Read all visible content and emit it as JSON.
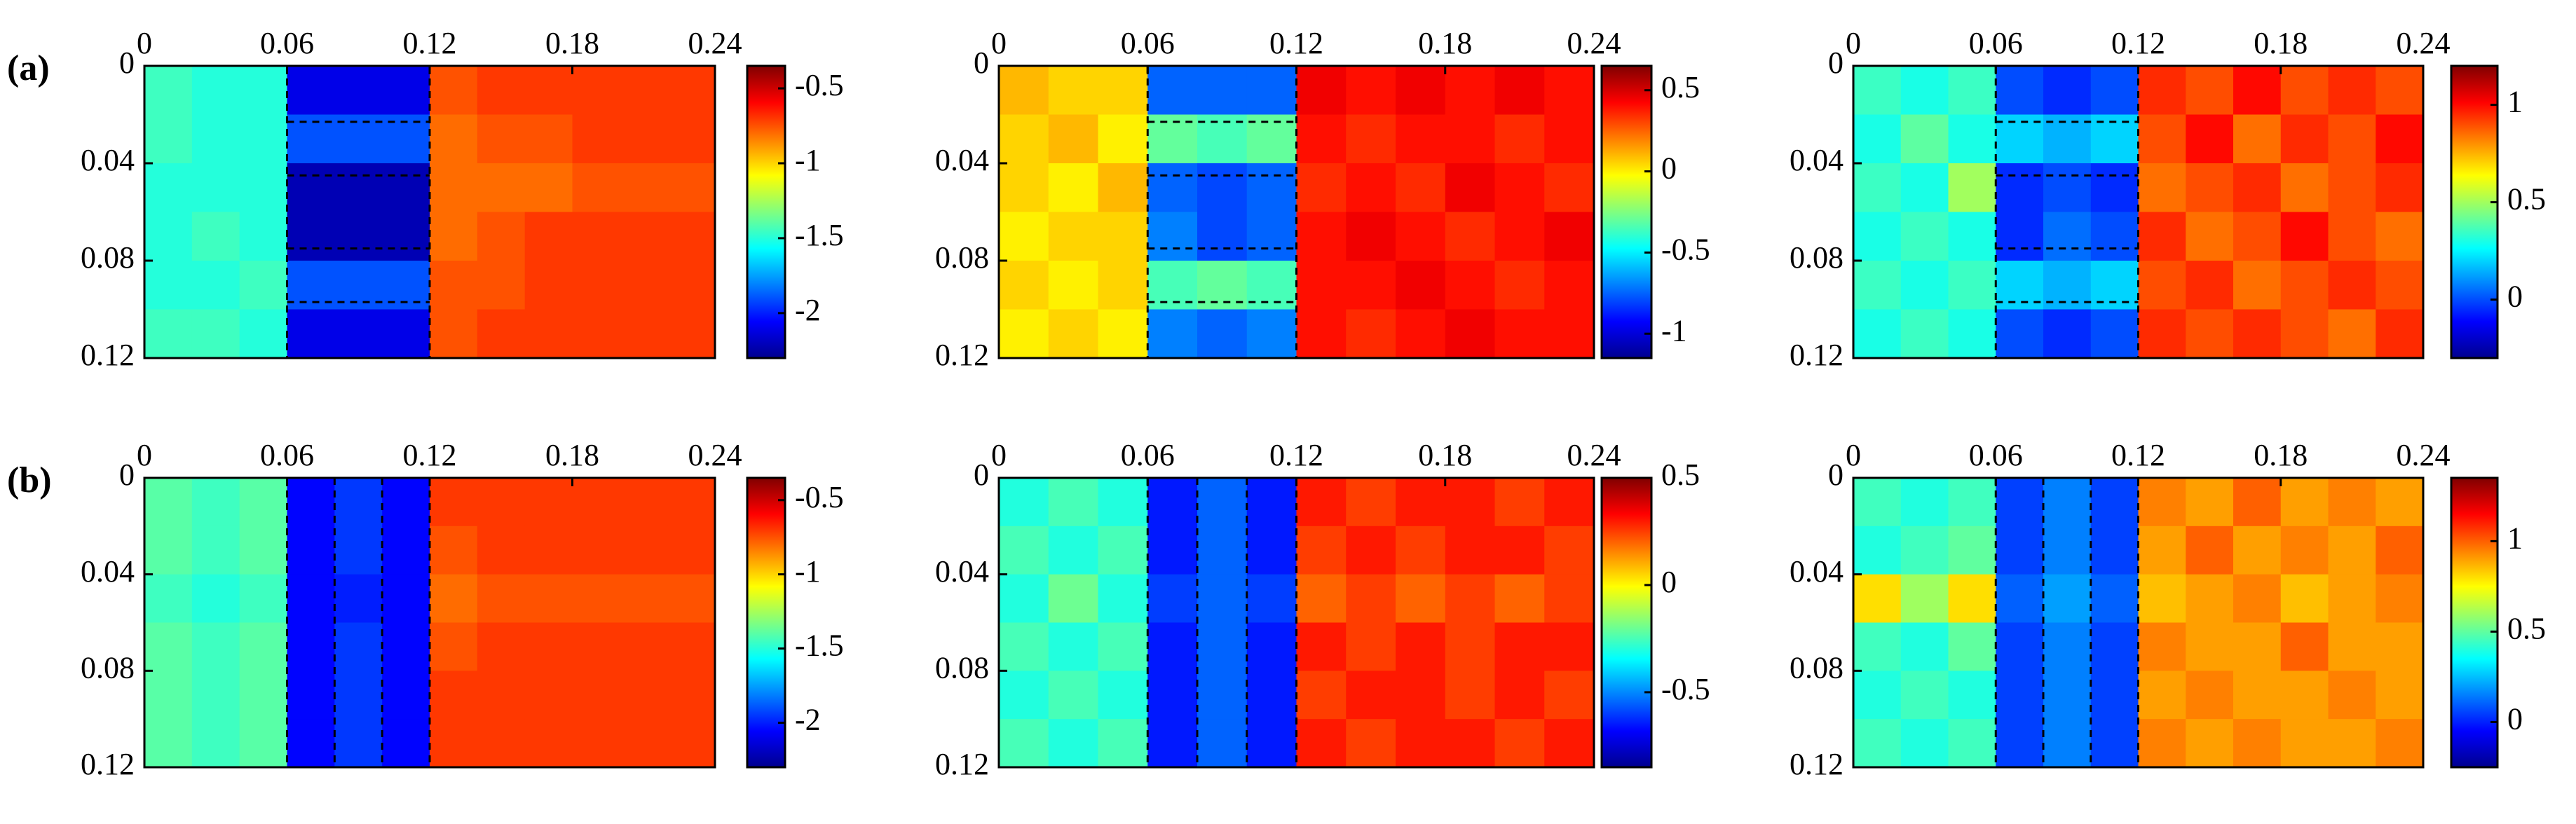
{
  "row_labels": [
    "(a)",
    "(b)"
  ],
  "chart_data": [
    {
      "type": "heatmap",
      "colormap": "jet",
      "xlim": [
        0,
        0.24
      ],
      "xticks": [
        0,
        0.06,
        0.12,
        0.18,
        0.24
      ],
      "ylim": [
        0.12,
        0
      ],
      "yticks": [
        0,
        0.04,
        0.08,
        0.12
      ],
      "zlim": [
        -2.3,
        -0.35
      ],
      "zticks": [
        -0.5,
        -1,
        -1.5,
        -2
      ],
      "dashed_x": [
        0.06,
        0.12
      ],
      "dashed_y": [
        0.023,
        0.045,
        0.075,
        0.097
      ],
      "z": [
        [
          -1.45,
          -1.5,
          -1.5,
          -2.1,
          -2.1,
          -2.1,
          -0.75,
          -0.7,
          -0.7,
          -0.7,
          -0.7,
          -0.7
        ],
        [
          -1.45,
          -1.5,
          -1.5,
          -1.9,
          -1.9,
          -1.9,
          -0.8,
          -0.75,
          -0.75,
          -0.7,
          -0.7,
          -0.7
        ],
        [
          -1.5,
          -1.5,
          -1.5,
          -2.2,
          -2.2,
          -2.2,
          -0.8,
          -0.8,
          -0.8,
          -0.75,
          -0.75,
          -0.75
        ],
        [
          -1.5,
          -1.45,
          -1.5,
          -2.2,
          -2.2,
          -2.2,
          -0.8,
          -0.75,
          -0.7,
          -0.7,
          -0.7,
          -0.7
        ],
        [
          -1.5,
          -1.5,
          -1.45,
          -1.9,
          -1.9,
          -1.9,
          -0.75,
          -0.75,
          -0.7,
          -0.7,
          -0.7,
          -0.7
        ],
        [
          -1.45,
          -1.45,
          -1.5,
          -2.1,
          -2.1,
          -2.1,
          -0.75,
          -0.7,
          -0.7,
          -0.7,
          -0.7,
          -0.7
        ]
      ]
    },
    {
      "type": "heatmap",
      "colormap": "jet",
      "xlim": [
        0,
        0.24
      ],
      "xticks": [
        0,
        0.06,
        0.12,
        0.18,
        0.24
      ],
      "ylim": [
        0.12,
        0
      ],
      "yticks": [
        0,
        0.04,
        0.08,
        0.12
      ],
      "zlim": [
        -1.15,
        0.65
      ],
      "zticks": [
        0.5,
        0,
        -0.5,
        -1
      ],
      "dashed_x": [
        0.06,
        0.12
      ],
      "dashed_y": [
        0.023,
        0.045,
        0.075,
        0.097
      ],
      "z": [
        [
          0.1,
          0.05,
          0.05,
          -0.75,
          -0.75,
          -0.75,
          0.45,
          0.4,
          0.45,
          0.4,
          0.45,
          0.4
        ],
        [
          0.05,
          0.1,
          0.0,
          -0.3,
          -0.35,
          -0.3,
          0.4,
          0.35,
          0.4,
          0.4,
          0.35,
          0.4
        ],
        [
          0.05,
          0.0,
          0.1,
          -0.75,
          -0.8,
          -0.75,
          0.35,
          0.4,
          0.35,
          0.45,
          0.4,
          0.35
        ],
        [
          0.0,
          0.05,
          0.05,
          -0.7,
          -0.8,
          -0.75,
          0.4,
          0.45,
          0.4,
          0.35,
          0.4,
          0.45
        ],
        [
          0.05,
          0.0,
          0.05,
          -0.35,
          -0.3,
          -0.35,
          0.4,
          0.4,
          0.45,
          0.4,
          0.35,
          0.4
        ],
        [
          0.0,
          0.05,
          0.0,
          -0.7,
          -0.75,
          -0.7,
          0.4,
          0.35,
          0.4,
          0.45,
          0.4,
          0.4
        ]
      ]
    },
    {
      "type": "heatmap",
      "colormap": "jet",
      "xlim": [
        0,
        0.24
      ],
      "xticks": [
        0,
        0.06,
        0.12,
        0.18,
        0.24
      ],
      "ylim": [
        0.12,
        0
      ],
      "yticks": [
        0,
        0.04,
        0.08,
        0.12
      ],
      "zlim": [
        -0.3,
        1.2
      ],
      "zticks": [
        1,
        0.5,
        0
      ],
      "dashed_x": [
        0.06,
        0.12
      ],
      "dashed_y": [
        0.023,
        0.045,
        0.075,
        0.097
      ],
      "z": [
        [
          0.35,
          0.3,
          0.35,
          0.0,
          -0.05,
          0.0,
          0.95,
          0.9,
          1.0,
          0.9,
          0.95,
          0.9
        ],
        [
          0.3,
          0.4,
          0.3,
          0.2,
          0.15,
          0.2,
          0.9,
          1.0,
          0.85,
          0.95,
          0.9,
          1.0
        ],
        [
          0.35,
          0.3,
          0.5,
          -0.05,
          0.0,
          -0.05,
          0.85,
          0.9,
          0.95,
          0.85,
          0.9,
          0.95
        ],
        [
          0.3,
          0.35,
          0.3,
          -0.05,
          0.05,
          0.0,
          0.95,
          0.85,
          0.9,
          1.0,
          0.9,
          0.85
        ],
        [
          0.35,
          0.3,
          0.35,
          0.2,
          0.15,
          0.2,
          0.9,
          0.95,
          0.85,
          0.9,
          0.95,
          0.9
        ],
        [
          0.3,
          0.35,
          0.3,
          0.0,
          -0.05,
          0.0,
          0.95,
          0.9,
          0.95,
          0.9,
          0.85,
          0.95
        ]
      ]
    },
    {
      "type": "heatmap",
      "colormap": "jet",
      "xlim": [
        0,
        0.24
      ],
      "xticks": [
        0,
        0.06,
        0.12,
        0.18,
        0.24
      ],
      "ylim": [
        0.12,
        0
      ],
      "yticks": [
        0,
        0.04,
        0.08,
        0.12
      ],
      "zlim": [
        -2.3,
        -0.35
      ],
      "zticks": [
        -0.5,
        -1,
        -1.5,
        -2
      ],
      "dashed_x": [
        0.06,
        0.08,
        0.1,
        0.12
      ],
      "z": [
        [
          -1.4,
          -1.45,
          -1.4,
          -2.05,
          -1.95,
          -2.05,
          -0.7,
          -0.7,
          -0.7,
          -0.7,
          -0.7,
          -0.7
        ],
        [
          -1.4,
          -1.45,
          -1.4,
          -2.05,
          -1.95,
          -2.05,
          -0.75,
          -0.7,
          -0.7,
          -0.7,
          -0.7,
          -0.7
        ],
        [
          -1.45,
          -1.5,
          -1.45,
          -2.05,
          -2.0,
          -2.05,
          -0.8,
          -0.75,
          -0.75,
          -0.75,
          -0.75,
          -0.75
        ],
        [
          -1.4,
          -1.45,
          -1.4,
          -2.05,
          -1.95,
          -2.05,
          -0.75,
          -0.7,
          -0.7,
          -0.7,
          -0.7,
          -0.7
        ],
        [
          -1.4,
          -1.45,
          -1.4,
          -2.05,
          -1.95,
          -2.05,
          -0.7,
          -0.7,
          -0.7,
          -0.7,
          -0.7,
          -0.7
        ],
        [
          -1.4,
          -1.45,
          -1.4,
          -2.05,
          -1.95,
          -2.05,
          -0.7,
          -0.7,
          -0.7,
          -0.7,
          -0.7,
          -0.7
        ]
      ]
    },
    {
      "type": "heatmap",
      "colormap": "jet",
      "xlim": [
        0,
        0.24
      ],
      "xticks": [
        0,
        0.06,
        0.12,
        0.18,
        0.24
      ],
      "ylim": [
        0.12,
        0
      ],
      "yticks": [
        0,
        0.04,
        0.08,
        0.12
      ],
      "zlim": [
        -0.85,
        0.5
      ],
      "zticks": [
        0.5,
        0,
        -0.5
      ],
      "dashed_x": [
        0.06,
        0.08,
        0.1,
        0.12
      ],
      "z": [
        [
          -0.3,
          -0.25,
          -0.3,
          -0.65,
          -0.55,
          -0.65,
          0.3,
          0.25,
          0.3,
          0.3,
          0.25,
          0.3
        ],
        [
          -0.25,
          -0.3,
          -0.25,
          -0.65,
          -0.55,
          -0.65,
          0.25,
          0.3,
          0.25,
          0.3,
          0.3,
          0.25
        ],
        [
          -0.3,
          -0.2,
          -0.3,
          -0.6,
          -0.55,
          -0.6,
          0.2,
          0.25,
          0.2,
          0.25,
          0.2,
          0.25
        ],
        [
          -0.25,
          -0.3,
          -0.25,
          -0.65,
          -0.55,
          -0.65,
          0.3,
          0.25,
          0.3,
          0.25,
          0.3,
          0.3
        ],
        [
          -0.3,
          -0.25,
          -0.3,
          -0.65,
          -0.55,
          -0.65,
          0.25,
          0.3,
          0.3,
          0.25,
          0.3,
          0.25
        ],
        [
          -0.25,
          -0.3,
          -0.25,
          -0.65,
          -0.55,
          -0.65,
          0.3,
          0.25,
          0.3,
          0.3,
          0.25,
          0.3
        ]
      ]
    },
    {
      "type": "heatmap",
      "colormap": "jet",
      "xlim": [
        0,
        0.24
      ],
      "xticks": [
        0,
        0.06,
        0.12,
        0.18,
        0.24
      ],
      "ylim": [
        0.12,
        0
      ],
      "yticks": [
        0,
        0.04,
        0.08,
        0.12
      ],
      "zlim": [
        -0.25,
        1.35
      ],
      "zticks": [
        1,
        0.5,
        0
      ],
      "dashed_x": [
        0.06,
        0.08,
        0.1,
        0.12
      ],
      "z": [
        [
          0.45,
          0.4,
          0.45,
          0.05,
          0.15,
          0.05,
          0.95,
          0.9,
          1.0,
          0.9,
          0.95,
          0.9
        ],
        [
          0.4,
          0.45,
          0.5,
          0.05,
          0.15,
          0.05,
          0.9,
          1.0,
          0.9,
          0.95,
          0.9,
          1.0
        ],
        [
          0.8,
          0.6,
          0.8,
          0.1,
          0.2,
          0.1,
          0.85,
          0.9,
          0.95,
          0.85,
          0.9,
          0.95
        ],
        [
          0.45,
          0.4,
          0.5,
          0.05,
          0.15,
          0.05,
          0.95,
          0.9,
          0.9,
          1.0,
          0.9,
          0.9
        ],
        [
          0.4,
          0.45,
          0.4,
          0.05,
          0.15,
          0.05,
          0.9,
          0.95,
          0.9,
          0.9,
          0.95,
          0.9
        ],
        [
          0.45,
          0.4,
          0.45,
          0.05,
          0.15,
          0.05,
          0.95,
          0.9,
          0.95,
          0.9,
          0.9,
          0.95
        ]
      ]
    }
  ]
}
